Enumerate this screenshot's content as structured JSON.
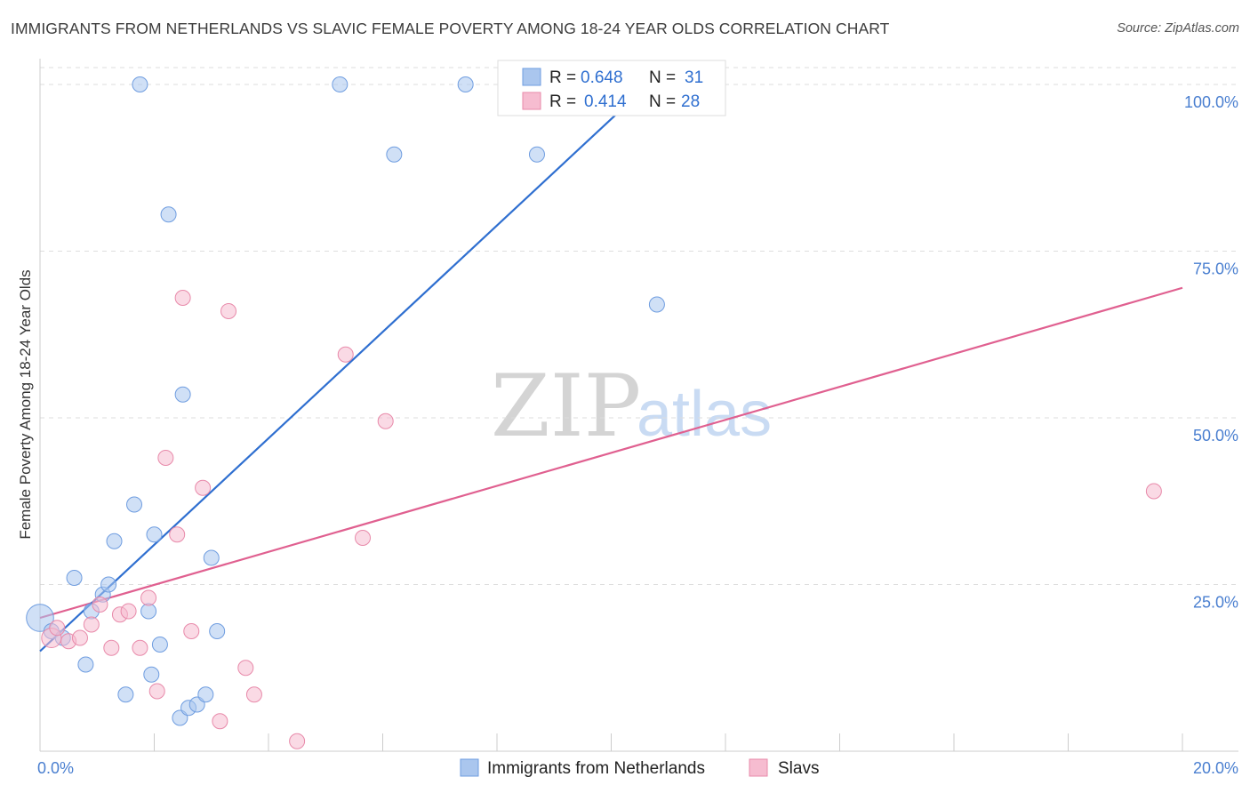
{
  "title": "IMMIGRANTS FROM NETHERLANDS VS SLAVIC FEMALE POVERTY AMONG 18-24 YEAR OLDS CORRELATION CHART",
  "source": "Source: ZipAtlas.com",
  "watermark": {
    "zip": "ZIP",
    "atlas": "atlas"
  },
  "colors": {
    "blue_fill": "#aac6ee",
    "blue_stroke": "#6f9de0",
    "blue_line": "#2f6fd0",
    "pink_fill": "#f6bcd0",
    "pink_stroke": "#e88aaa",
    "pink_line": "#e06090",
    "grid": "#dddddd",
    "axis_text": "#4a7fd0"
  },
  "legend": {
    "rows": [
      {
        "r_label": "R =",
        "r_value": "0.648",
        "n_label": "N =",
        "n_value": "31"
      },
      {
        "r_label": "R =",
        "r_value": "0.414",
        "n_label": "N =",
        "n_value": "28"
      }
    ]
  },
  "chart_data": {
    "type": "scatter",
    "title": "IMMIGRANTS FROM NETHERLANDS VS SLAVIC FEMALE POVERTY AMONG 18-24 YEAR OLDS CORRELATION CHART",
    "xlabel": "",
    "ylabel": "Female Poverty Among 18-24 Year Olds",
    "xlim": [
      0,
      20
    ],
    "ylim": [
      0,
      102
    ],
    "x_tick_labels": {
      "min": "0.0%",
      "max": "20.0%"
    },
    "y_ticks": [
      {
        "value": 25,
        "label": "25.0%"
      },
      {
        "value": 50,
        "label": "50.0%"
      },
      {
        "value": 75,
        "label": "75.0%"
      },
      {
        "value": 100,
        "label": "100.0%"
      }
    ],
    "series": [
      {
        "name": "Immigrants from Netherlands",
        "r": 0.648,
        "n": 31,
        "trend": {
          "x0": 0.0,
          "y0": 15.0,
          "x1": 10.9,
          "y1": 102.0
        },
        "points": [
          [
            0.0,
            20.0,
            1.8
          ],
          [
            0.2,
            18.0,
            1
          ],
          [
            0.4,
            17.0,
            1
          ],
          [
            0.6,
            26.0,
            1
          ],
          [
            0.8,
            13.0,
            1
          ],
          [
            0.9,
            21.0,
            1
          ],
          [
            1.1,
            23.5,
            1
          ],
          [
            1.2,
            25.0,
            1
          ],
          [
            1.3,
            31.5,
            1
          ],
          [
            1.5,
            8.5,
            1
          ],
          [
            1.65,
            37.0,
            1
          ],
          [
            1.75,
            100.0,
            1
          ],
          [
            1.9,
            21.0,
            1
          ],
          [
            1.95,
            11.5,
            1
          ],
          [
            2.0,
            32.5,
            1
          ],
          [
            2.1,
            16.0,
            1
          ],
          [
            2.25,
            80.5,
            1
          ],
          [
            2.45,
            5.0,
            1
          ],
          [
            2.5,
            53.5,
            1
          ],
          [
            2.6,
            6.5,
            1
          ],
          [
            2.75,
            7.0,
            1
          ],
          [
            2.9,
            8.5,
            1
          ],
          [
            3.0,
            29.0,
            1
          ],
          [
            3.1,
            18.0,
            1
          ],
          [
            5.25,
            100.0,
            1
          ],
          [
            6.2,
            89.5,
            1
          ],
          [
            7.45,
            100.0,
            1
          ],
          [
            8.7,
            89.5,
            1
          ],
          [
            10.8,
            67.0,
            1
          ]
        ]
      },
      {
        "name": "Slavs",
        "r": 0.414,
        "n": 28,
        "trend": {
          "x0": 0.0,
          "y0": 20.0,
          "x1": 20.0,
          "y1": 69.5
        },
        "points": [
          [
            0.2,
            17.0,
            1.3
          ],
          [
            0.3,
            18.5,
            1
          ],
          [
            0.5,
            16.5,
            1
          ],
          [
            0.7,
            17.0,
            1
          ],
          [
            0.9,
            19.0,
            1
          ],
          [
            1.05,
            22.0,
            1
          ],
          [
            1.25,
            15.5,
            1
          ],
          [
            1.4,
            20.5,
            1
          ],
          [
            1.55,
            21.0,
            1
          ],
          [
            1.75,
            15.5,
            1
          ],
          [
            1.9,
            23.0,
            1
          ],
          [
            2.05,
            9.0,
            1
          ],
          [
            2.2,
            44.0,
            1
          ],
          [
            2.4,
            32.5,
            1
          ],
          [
            2.5,
            68.0,
            1
          ],
          [
            2.65,
            18.0,
            1
          ],
          [
            2.85,
            39.5,
            1
          ],
          [
            3.15,
            4.5,
            1
          ],
          [
            3.3,
            66.0,
            1
          ],
          [
            3.6,
            12.5,
            1
          ],
          [
            3.75,
            8.5,
            1
          ],
          [
            4.5,
            1.5,
            1
          ],
          [
            5.35,
            59.5,
            1
          ],
          [
            5.65,
            32.0,
            1
          ],
          [
            6.05,
            49.5,
            1
          ],
          [
            19.5,
            39.0,
            1
          ]
        ]
      }
    ]
  }
}
